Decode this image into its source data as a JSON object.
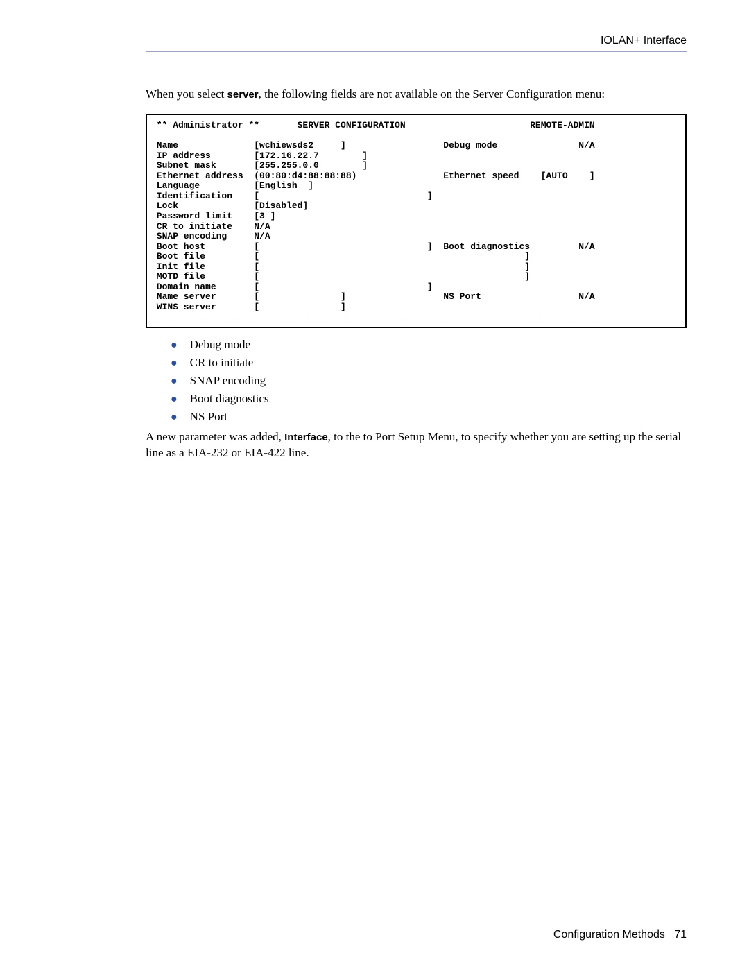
{
  "header": {
    "title": "IOLAN+ Interface"
  },
  "intro": {
    "pre": "When you select ",
    "bold": "server",
    "post": ", the following fields are not available on the Server Configuration menu:"
  },
  "terminal": {
    "colors": {
      "border": "#000000",
      "text": "#000000",
      "bg": "#ffffff"
    },
    "font_family": "Courier New",
    "font_size_pt": 9,
    "header_left": "** Administrator **",
    "header_center": "SERVER CONFIGURATION",
    "header_right": "REMOTE-ADMIN",
    "left_fields": [
      {
        "label": "Name",
        "value": "[wchiewsds2     ]"
      },
      {
        "label": "IP address",
        "value": "[172.16.22.7        ]"
      },
      {
        "label": "Subnet mask",
        "value": "[255.255.0.0        ]"
      },
      {
        "label": "Ethernet address",
        "value": "(00:80:d4:88:88:88)"
      },
      {
        "label": "Language",
        "value": "[English  ]"
      },
      {
        "label": "Identification",
        "value": "[                               ]"
      },
      {
        "label": "Lock",
        "value": "[Disabled]"
      },
      {
        "label": "Password limit",
        "value": "[3 ]"
      },
      {
        "label": "CR to initiate",
        "value": "N/A"
      },
      {
        "label": "SNAP encoding",
        "value": "N/A"
      },
      {
        "label": "Boot host",
        "value": "[                               ]"
      },
      {
        "label": "Boot file",
        "value": "[                                                 ]"
      },
      {
        "label": "Init file",
        "value": "[                                                 ]"
      },
      {
        "label": "MOTD file",
        "value": "[                                                 ]"
      },
      {
        "label": "Domain name",
        "value": "[                               ]"
      },
      {
        "label": "Name server",
        "value": "[               ]"
      },
      {
        "label": "WINS server",
        "value": "[               ]"
      }
    ],
    "right_fields": [
      {
        "row": 0,
        "label": "Debug mode",
        "value": "N/A"
      },
      {
        "row": 3,
        "label": "Ethernet speed",
        "value": "[AUTO    ]"
      },
      {
        "row": 10,
        "label": "Boot diagnostics",
        "value": "N/A"
      },
      {
        "row": 15,
        "label": "NS Port",
        "value": "N/A"
      }
    ]
  },
  "bullets": [
    "Debug mode",
    "CR to initiate",
    "SNAP encoding",
    "Boot diagnostics",
    "NS Port"
  ],
  "para2": {
    "pre": "A new parameter was added, ",
    "bold": "Interface",
    "post": ", to the to Port Setup Menu, to specify whether you are setting up the serial line as a EIA-232 or EIA-422 line."
  },
  "footer": {
    "section": "Configuration Methods",
    "page": "71"
  },
  "colors": {
    "header_rule": "#9aa5c4",
    "bullet": "#2a4ea0",
    "body_text": "#000000",
    "background": "#ffffff"
  },
  "typography": {
    "body_family": "Times New Roman",
    "body_size_pt": 13,
    "sans_family": "Arial",
    "mono_family": "Courier New"
  }
}
